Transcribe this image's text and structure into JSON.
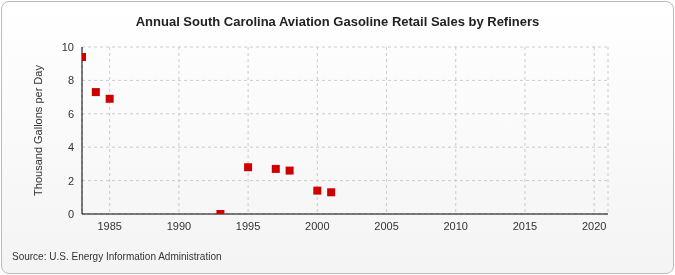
{
  "chart_data": {
    "type": "scatter",
    "title": "Annual South Carolina Aviation Gasoline Retail Sales by Refiners",
    "y_label": "Thousand Gallons per Day",
    "source": "Source: U.S. Energy Information Administration",
    "x": [
      1983,
      1984,
      1985,
      1993,
      1995,
      1997,
      1998,
      2000,
      2001
    ],
    "values": [
      9.4,
      7.3,
      6.9,
      0.0,
      2.8,
      2.7,
      2.6,
      1.4,
      1.3
    ],
    "color": "#cc0000",
    "marker": "square",
    "xlim": [
      1983,
      2021
    ],
    "xticks": [
      1985,
      1990,
      1995,
      2000,
      2005,
      2010,
      2015,
      2020
    ],
    "ylim": [
      0,
      10
    ],
    "yticks": [
      0,
      2,
      4,
      6,
      8,
      10
    ],
    "grid": true
  }
}
